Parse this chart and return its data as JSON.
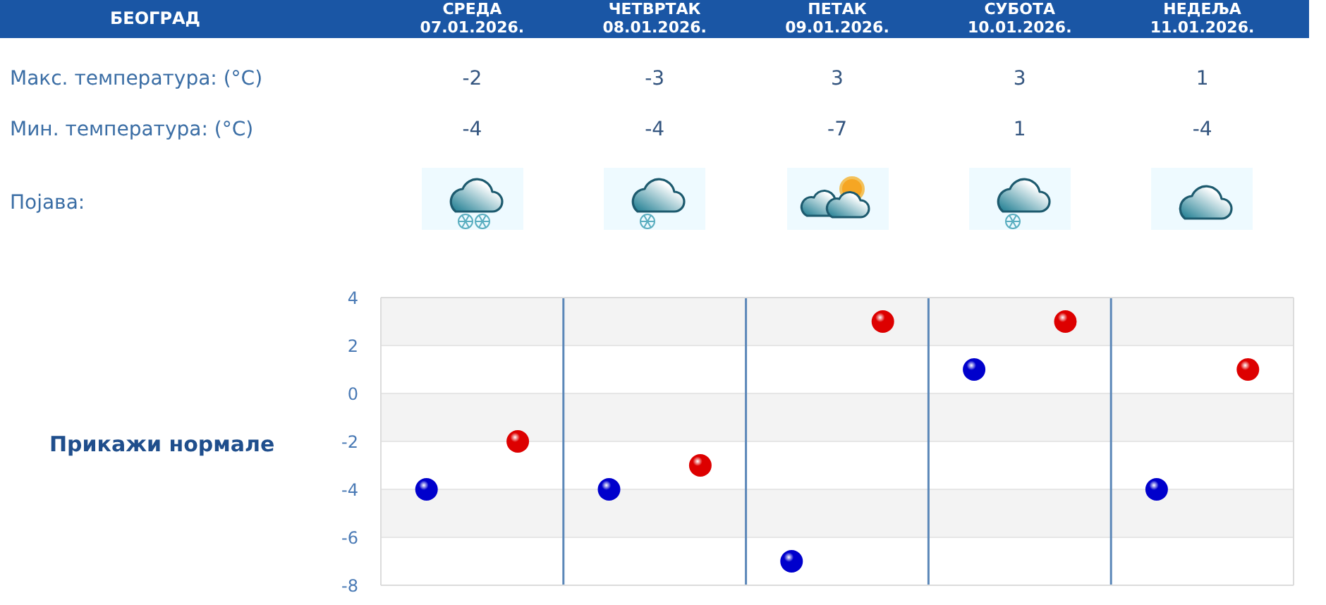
{
  "chart_data": {
    "type": "scatter",
    "title": "БЕОГРАД",
    "categories": [
      null,
      null,
      null,
      null,
      null
    ],
    "series": [
      {
        "color": "#dd0000",
        "values": [
          -2,
          -3,
          3,
          3,
          1
        ]
      },
      {
        "color": "#0000cc",
        "values": [
          -4,
          -4,
          -7,
          1,
          -4
        ]
      }
    ],
    "ylim": [
      -8,
      4
    ],
    "yticks": [
      -8,
      -6,
      -4,
      -2,
      0,
      2,
      4
    ],
    "tick_labels": "y",
    "grid": true,
    "marker": "circle",
    "data_labels": true,
    "annotations": [
      "СРЕДА\n07.01.2026.",
      "ЧЕТВРТАК\n08.01.2026.",
      "ПЕТАК\n09.01.2026.",
      "СУБОТА\n10.01.2026.",
      "НЕДЕЉА\n11.01.2026.",
      "Макс. температура: (°C)",
      "Мин. температура: (°C)",
      "Појава:",
      "Прикажи нормале"
    ]
  }
}
